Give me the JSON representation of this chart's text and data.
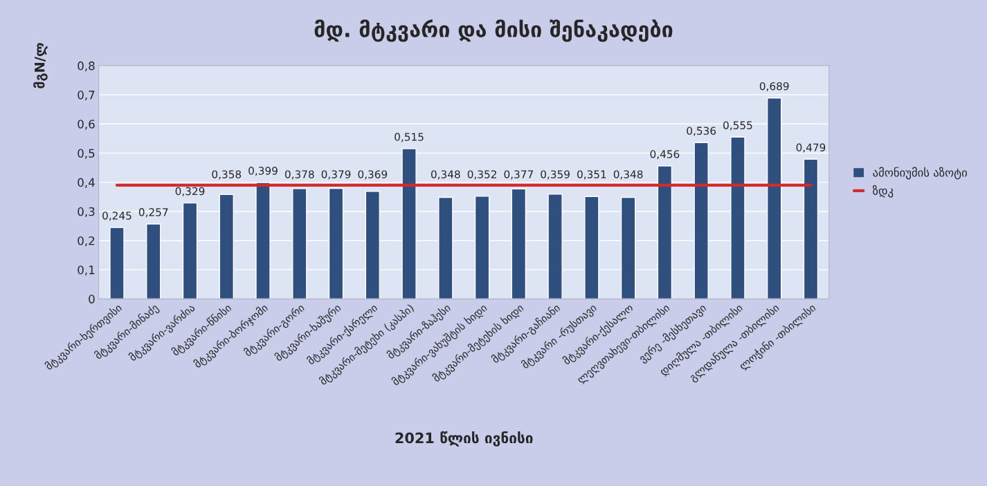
{
  "chart_data": {
    "type": "bar",
    "title": "მდ. მტკვარი და მისი შენაკადები",
    "ylabel": "მგN/ლ",
    "xlabel": "2021 წლის ივნისი",
    "categories": [
      "მტკვარი-ხერთვისი",
      "მტკვარი-მინაძე",
      "მტკვარი-ვარძია",
      "მტკვარი-წნისი",
      "მტკვარი-ბორჯომი",
      "მტკვარი-გორი",
      "მტკვარი-ხაშური",
      "მტკვარი-ქარელი",
      "მტკვარი-მეტეხი (კასპი)",
      "მტკვარი-ზაჰესი",
      "მტკვარი-ვახუშტის ხიდი",
      "მტკვარი-მეტეხის ხიდი",
      "მტკვარი-გაჩიანი",
      "მტკვარი -რუსთავი",
      "მტკვარი-ქესალო",
      "ლეღვთახევი-თბილისი",
      "ვერე -მესხეთავი",
      "დიღმულა -თბილისი",
      "გლდანულა -თბილისი",
      "ლოჭინი -თბილისი"
    ],
    "series": [
      {
        "name": "ამონიუმის აზოტი",
        "color": "#2f4f7f",
        "values": [
          0.245,
          0.257,
          0.329,
          0.358,
          0.399,
          0.378,
          0.379,
          0.369,
          0.515,
          0.348,
          0.352,
          0.377,
          0.359,
          0.351,
          0.348,
          0.456,
          0.536,
          0.555,
          0.689,
          0.479
        ],
        "value_labels": [
          "0,245",
          "0,257",
          "0,329",
          "0,358",
          "0,399",
          "0,378",
          "0,379",
          "0,369",
          "0,515",
          "0,348",
          "0,352",
          "0,377",
          "0,359",
          "0,351",
          "0,348",
          "0,456",
          "0,536",
          "0,555",
          "0,689",
          "0,479"
        ]
      },
      {
        "name": "ზდკ",
        "type": "line",
        "color": "#d42a2a",
        "values": [
          0.39,
          0.39,
          0.39,
          0.39,
          0.39,
          0.39,
          0.39,
          0.39,
          0.39,
          0.39,
          0.39,
          0.39,
          0.39,
          0.39,
          0.39,
          0.39,
          0.39,
          0.39,
          0.39,
          0.39
        ]
      }
    ],
    "ylim": [
      0,
      0.8
    ],
    "yticks": [
      0,
      {
        "value": 0.1,
        "label": "0,1"
      },
      {
        "value": 0.2,
        "label": "0,2"
      },
      {
        "value": 0.3,
        "label": "0,3"
      },
      {
        "value": 0.4,
        "label": "0,4"
      },
      {
        "value": 0.5,
        "label": "0,5"
      },
      {
        "value": 0.6,
        "label": "0,6"
      },
      {
        "value": 0.7,
        "label": "0,7"
      },
      {
        "value": 0.8,
        "label": "0,8"
      }
    ],
    "grid": "y",
    "legend": "right"
  }
}
